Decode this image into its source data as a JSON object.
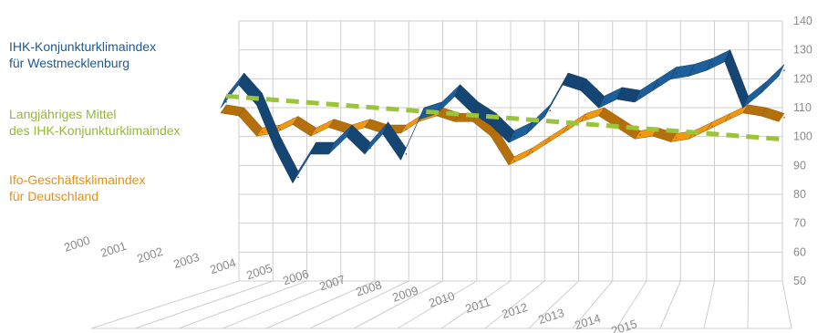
{
  "chart_data": {
    "type": "line",
    "y_ticks": [
      "50",
      "60",
      "70",
      "80",
      "90",
      "100",
      "110",
      "120",
      "130",
      "140"
    ],
    "ylim": [
      50,
      140
    ],
    "x_ticks": [
      "2000",
      "2001",
      "2002",
      "2003",
      "2004",
      "2005",
      "2006",
      "2007",
      "2008",
      "2009",
      "2010",
      "2011",
      "2012",
      "2013",
      "2014",
      "2015"
    ],
    "grid": true,
    "legend_position": "left",
    "series": [
      {
        "name": "IHK-Konjunkturklimaindex für Westmecklenburg",
        "legend_lines": [
          "IHK-Konjunkturklimaindex",
          "für Westmecklenburg"
        ],
        "color": "#1b5a93",
        "x": [
          2000.0,
          2000.5,
          2001.0,
          2001.5,
          2002.0,
          2002.5,
          2003.0,
          2003.5,
          2004.0,
          2004.5,
          2005.0,
          2005.5,
          2006.0,
          2006.5,
          2007.0,
          2007.5,
          2008.0,
          2008.5,
          2009.0,
          2009.5,
          2010.0,
          2010.5,
          2011.0,
          2011.5,
          2012.0,
          2012.5,
          2013.0,
          2013.5,
          2014.0,
          2014.5,
          2015.0,
          2015.5
        ],
        "values": [
          114,
          122,
          115,
          100,
          88,
          98,
          98,
          104,
          98,
          105,
          96,
          110,
          112,
          118,
          112,
          108,
          102,
          105,
          111,
          122,
          120,
          114,
          117,
          116,
          120,
          124,
          125,
          127,
          130,
          114,
          119,
          125
        ]
      },
      {
        "name": "Ifo-Geschäftsklimaindex für Deutschland",
        "legend_lines": [
          "Ifo-Geschäftsklimaindex",
          "für Deutschland"
        ],
        "color": "#e8900f",
        "x": [
          2000.0,
          2000.5,
          2001.0,
          2001.5,
          2002.0,
          2002.5,
          2003.0,
          2003.5,
          2004.0,
          2004.5,
          2005.0,
          2005.5,
          2006.0,
          2006.5,
          2007.0,
          2007.5,
          2008.0,
          2008.5,
          2009.0,
          2009.5,
          2010.0,
          2010.5,
          2011.0,
          2011.5,
          2012.0,
          2012.5,
          2013.0,
          2013.5,
          2014.0,
          2014.5,
          2015.0,
          2015.5
        ],
        "values": [
          111,
          110,
          103,
          104,
          107,
          103,
          106,
          104,
          106,
          104,
          104,
          108,
          110,
          108,
          108,
          103,
          93,
          96,
          100,
          104,
          108,
          110,
          106,
          102,
          103,
          101,
          102,
          105,
          108,
          111,
          110,
          108
        ]
      },
      {
        "name": "Langjähriges Mittel des IHK-Konjunkturklimaindex",
        "legend_lines": [
          "Langjähriges Mittel",
          "des IHK-Konjunkturklimaindex"
        ],
        "color": "#9bc43a",
        "dashed": true,
        "x": [
          2000.0,
          2015.5
        ],
        "values": [
          114,
          99
        ]
      }
    ]
  }
}
